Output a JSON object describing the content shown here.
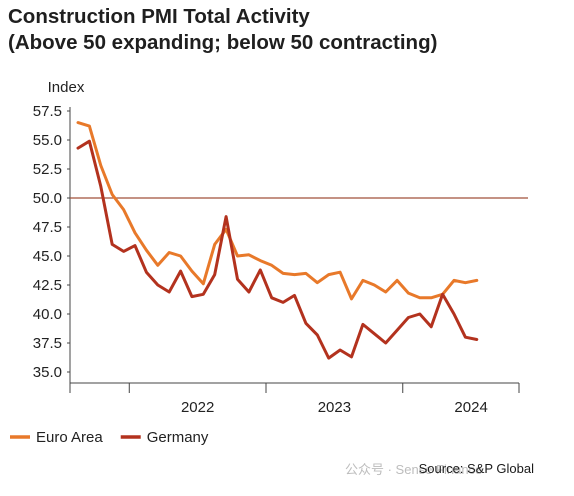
{
  "title_line1": "Construction PMI Total Activity",
  "title_line2": "(Above 50 expanding; below 50 contracting)",
  "source": "Source: S&P Global",
  "watermark": "公众号 · Sense Finance",
  "chart_data": {
    "type": "line",
    "ylabel": "Index",
    "ylim": [
      35,
      57.5
    ],
    "yticks": [
      35.0,
      37.5,
      40.0,
      42.5,
      45.0,
      47.5,
      50.0,
      52.5,
      55.0,
      57.5
    ],
    "ytick_labels": [
      "35.0",
      "37.5",
      "40.0",
      "42.5",
      "45.0",
      "47.5",
      "50.0",
      "52.5",
      "55.0",
      "57.5"
    ],
    "x_labels": [
      "2022",
      "2023",
      "2024"
    ],
    "x_start": "2021-08",
    "x_end": "2024-10",
    "reference_line": 50,
    "grid": false,
    "legend_position": "bottom-left",
    "series": [
      {
        "name": "Euro Area",
        "color": "#e8792a",
        "values": [
          56.5,
          56.2,
          52.8,
          50.3,
          49.0,
          47.0,
          45.5,
          44.2,
          45.3,
          45.0,
          43.7,
          42.6,
          46.0,
          47.3,
          45.0,
          45.1,
          44.6,
          44.2,
          43.5,
          43.4,
          43.5,
          42.7,
          43.4,
          43.6,
          41.3,
          42.9,
          42.5,
          41.9,
          42.9,
          41.8,
          41.4,
          41.4,
          41.7,
          42.9,
          42.7,
          42.9
        ]
      },
      {
        "name": "Germany",
        "color": "#b3321e",
        "values": [
          54.3,
          54.9,
          51.0,
          46.0,
          45.4,
          45.9,
          43.6,
          42.5,
          41.9,
          43.7,
          41.5,
          41.7,
          43.4,
          48.4,
          43.0,
          41.9,
          43.8,
          41.4,
          41.0,
          41.6,
          39.2,
          38.2,
          36.2,
          36.9,
          36.3,
          39.1,
          38.3,
          37.5,
          38.6,
          39.7,
          40.0,
          38.9,
          41.7,
          40.0,
          38.0,
          37.8
        ]
      }
    ]
  }
}
